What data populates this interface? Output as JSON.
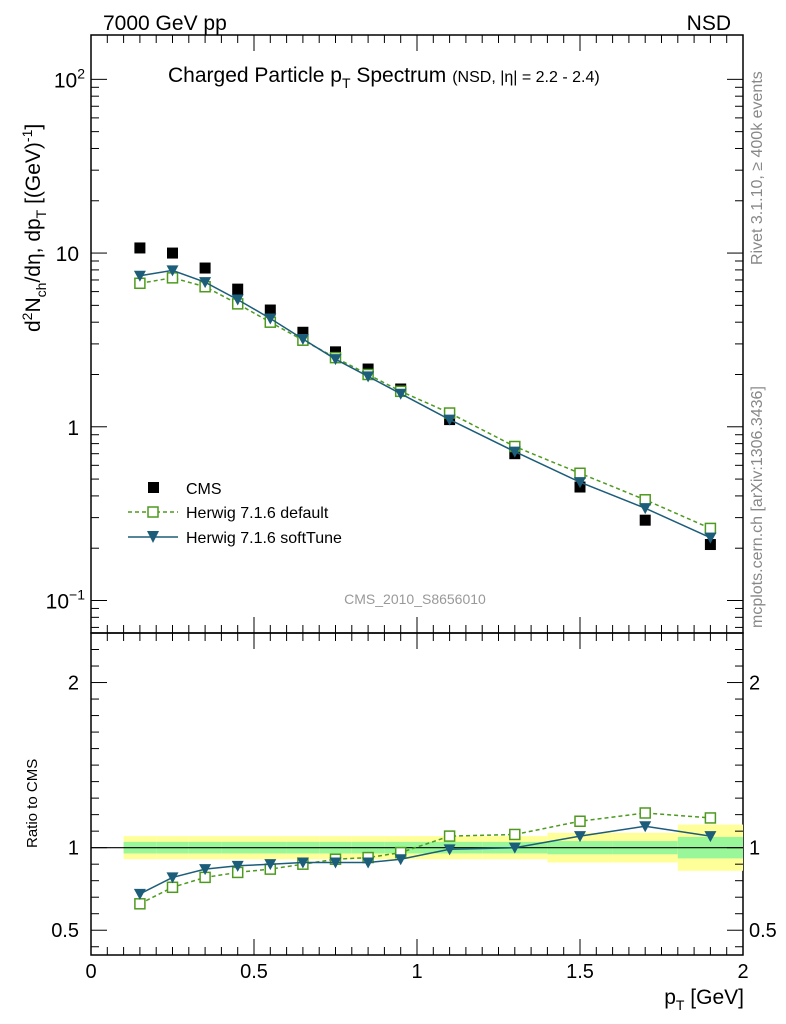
{
  "header": {
    "left": "7000 GeV pp",
    "right": "NSD"
  },
  "side_labels": {
    "rivet": "Rivet 3.1.10, ≥ 400k events",
    "mcplots": "mcplots.cern.ch [arXiv:1306.3436]"
  },
  "chart_data": [
    {
      "type": "scatter",
      "title_main": "Charged Particle p",
      "title_sub": "T",
      "title_tail": " Spectrum",
      "title_note": "(NSD, |η| = 2.2 - 2.4)",
      "ylabel": "d²N_ch/dη, dp_T [(GeV)⁻¹]",
      "yscale": "log",
      "xlim": [
        0,
        2
      ],
      "ylim": [
        0.065,
        180
      ],
      "yticks": [
        {
          "value": 0.1,
          "label": "10",
          "exp": "−1"
        },
        {
          "value": 1,
          "label": "1",
          "exp": ""
        },
        {
          "value": 10,
          "label": "10",
          "exp": ""
        },
        {
          "value": 100,
          "label": "10",
          "exp": "2"
        }
      ],
      "watermark": "CMS_2010_S8656010",
      "legend_position": "lower-left",
      "series": [
        {
          "name": "CMS",
          "style": "square-filled",
          "color": "#000000",
          "x": [
            0.15,
            0.25,
            0.35,
            0.45,
            0.55,
            0.65,
            0.75,
            0.85,
            0.95,
            1.1,
            1.3,
            1.5,
            1.7,
            1.9
          ],
          "values": [
            10.7,
            10.0,
            8.2,
            6.2,
            4.7,
            3.5,
            2.7,
            2.15,
            1.65,
            1.1,
            0.7,
            0.45,
            0.29,
            0.21
          ]
        },
        {
          "name": "Herwig 7.1.6 default",
          "style": "square-open-dashed",
          "color": "#4d9a1f",
          "x": [
            0.15,
            0.25,
            0.35,
            0.45,
            0.55,
            0.65,
            0.75,
            0.85,
            0.95,
            1.1,
            1.3,
            1.5,
            1.7,
            1.9
          ],
          "values": [
            6.7,
            7.2,
            6.4,
            5.1,
            4.0,
            3.15,
            2.5,
            2.0,
            1.6,
            1.2,
            0.77,
            0.54,
            0.38,
            0.26
          ]
        },
        {
          "name": "Herwig 7.1.6 softTune",
          "style": "triangle-down-filled-solid",
          "color": "#1c5d7a",
          "x": [
            0.15,
            0.25,
            0.35,
            0.45,
            0.55,
            0.65,
            0.75,
            0.85,
            0.95,
            1.1,
            1.3,
            1.5,
            1.7,
            1.9
          ],
          "values": [
            7.4,
            7.95,
            6.8,
            5.4,
            4.2,
            3.2,
            2.45,
            1.95,
            1.55,
            1.1,
            0.72,
            0.48,
            0.34,
            0.23
          ]
        }
      ]
    },
    {
      "type": "scatter",
      "ylabel": "Ratio to CMS",
      "xlabel_main": "p",
      "xlabel_sub": "T",
      "xlabel_tail": " [GeV]",
      "xlim": [
        0,
        2
      ],
      "ylim": [
        0.35,
        2.3
      ],
      "xticks": [
        0,
        0.5,
        1,
        1.5,
        2
      ],
      "xtick_labels": [
        "0",
        "0.5",
        "1",
        "1.5",
        "2"
      ],
      "yticks": [
        0.5,
        1,
        2
      ],
      "ytick_labels": [
        "0.5",
        "1",
        "2"
      ],
      "bands": {
        "stat_color": "#99f799",
        "total_color": "#ffff99",
        "bins": [
          {
            "lo": 0.1,
            "hi": 0.2,
            "stat": 0.035,
            "total": 0.07
          },
          {
            "lo": 0.2,
            "hi": 0.3,
            "stat": 0.035,
            "total": 0.07
          },
          {
            "lo": 0.3,
            "hi": 0.4,
            "stat": 0.035,
            "total": 0.07
          },
          {
            "lo": 0.4,
            "hi": 0.5,
            "stat": 0.035,
            "total": 0.07
          },
          {
            "lo": 0.5,
            "hi": 0.6,
            "stat": 0.035,
            "total": 0.07
          },
          {
            "lo": 0.6,
            "hi": 0.7,
            "stat": 0.035,
            "total": 0.07
          },
          {
            "lo": 0.7,
            "hi": 0.8,
            "stat": 0.035,
            "total": 0.07
          },
          {
            "lo": 0.8,
            "hi": 0.9,
            "stat": 0.035,
            "total": 0.07
          },
          {
            "lo": 0.9,
            "hi": 1.0,
            "stat": 0.035,
            "total": 0.07
          },
          {
            "lo": 1.0,
            "hi": 1.2,
            "stat": 0.035,
            "total": 0.07
          },
          {
            "lo": 1.2,
            "hi": 1.4,
            "stat": 0.035,
            "total": 0.07
          },
          {
            "lo": 1.4,
            "hi": 1.6,
            "stat": 0.04,
            "total": 0.09
          },
          {
            "lo": 1.6,
            "hi": 1.8,
            "stat": 0.04,
            "total": 0.09
          },
          {
            "lo": 1.8,
            "hi": 2.0,
            "stat": 0.065,
            "total": 0.14
          }
        ]
      },
      "series": [
        {
          "name": "Herwig 7.1.6 default",
          "style": "square-open-dashed",
          "color": "#4d9a1f",
          "x": [
            0.15,
            0.25,
            0.35,
            0.45,
            0.55,
            0.65,
            0.75,
            0.85,
            0.95,
            1.1,
            1.3,
            1.5,
            1.7,
            1.9
          ],
          "values": [
            0.66,
            0.76,
            0.82,
            0.85,
            0.87,
            0.9,
            0.93,
            0.94,
            0.97,
            1.07,
            1.08,
            1.16,
            1.21,
            1.18
          ]
        },
        {
          "name": "Herwig 7.1.6 softTune",
          "style": "triangle-down-filled-solid",
          "color": "#1c5d7a",
          "x": [
            0.15,
            0.25,
            0.35,
            0.45,
            0.55,
            0.65,
            0.75,
            0.85,
            0.95,
            1.1,
            1.3,
            1.5,
            1.7,
            1.9
          ],
          "values": [
            0.72,
            0.82,
            0.87,
            0.89,
            0.9,
            0.91,
            0.91,
            0.91,
            0.93,
            0.99,
            1.0,
            1.07,
            1.13,
            1.07
          ]
        }
      ]
    }
  ]
}
